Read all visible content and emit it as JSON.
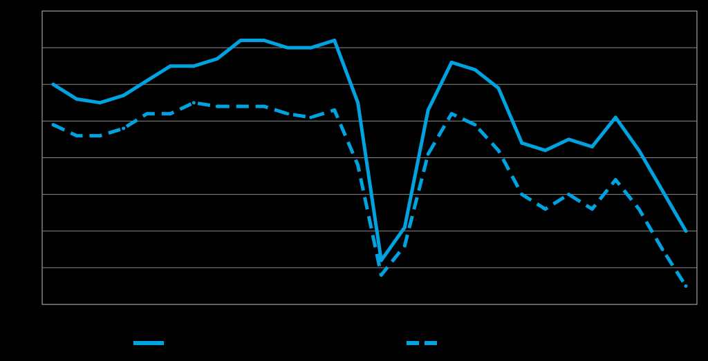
{
  "chart_data": {
    "type": "line",
    "title": "",
    "xlabel": "",
    "ylabel": "",
    "x": [
      1,
      2,
      3,
      4,
      5,
      6,
      7,
      8,
      9,
      10,
      11,
      12,
      13,
      14,
      15,
      16,
      17,
      18,
      19,
      20,
      21,
      22,
      23,
      24,
      25,
      26,
      27,
      28
    ],
    "ylim": [
      0,
      8
    ],
    "grid": true,
    "legend_position": "bottom",
    "series": [
      {
        "name": "",
        "style": "solid",
        "color": "#00a3e0",
        "values": [
          6.0,
          5.6,
          5.5,
          5.7,
          6.1,
          6.5,
          6.5,
          6.7,
          7.2,
          7.2,
          7.0,
          7.0,
          7.2,
          5.5,
          1.2,
          2.1,
          5.3,
          6.6,
          6.4,
          5.9,
          4.4,
          4.2,
          4.5,
          4.3,
          5.1,
          4.2,
          3.1,
          2.0
        ]
      },
      {
        "name": "",
        "style": "dashed",
        "color": "#00a3e0",
        "values": [
          4.9,
          4.6,
          4.6,
          4.8,
          5.2,
          5.2,
          5.5,
          5.4,
          5.4,
          5.4,
          5.2,
          5.1,
          5.3,
          3.8,
          0.8,
          1.6,
          4.1,
          5.2,
          4.9,
          4.2,
          3.0,
          2.6,
          3.0,
          2.6,
          3.4,
          2.6,
          1.5,
          0.5
        ]
      }
    ]
  }
}
